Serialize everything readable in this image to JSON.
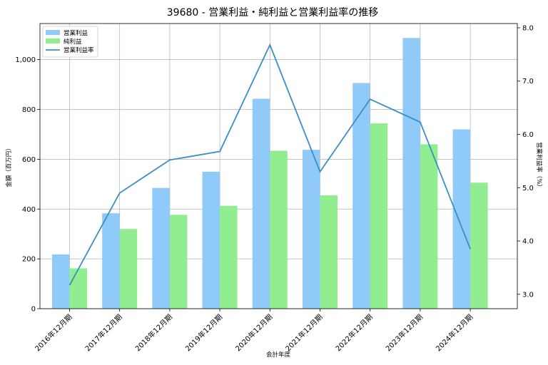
{
  "chart_data": {
    "type": "bar",
    "title": "39680 - 営業利益・純利益と営業利益率の推移",
    "xlabel": "会計年度",
    "ylabel": "金額（百万円）",
    "y2label": "営業利益率（%）",
    "categories": [
      "2016年12月期",
      "2017年12月期",
      "2018年12月期",
      "2019年12月期",
      "2020年12月期",
      "2021年12月期",
      "2022年12月期",
      "2023年12月期",
      "2024年12月期"
    ],
    "series": [
      {
        "name": "営業利益",
        "kind": "bar",
        "color": "#90caf9",
        "values": [
          218,
          383,
          485,
          550,
          843,
          638,
          906,
          1087,
          720
        ]
      },
      {
        "name": "純利益",
        "kind": "bar",
        "color": "#90ee90",
        "values": [
          162,
          320,
          377,
          413,
          634,
          455,
          744,
          660,
          506
        ]
      },
      {
        "name": "営業利益率",
        "kind": "line",
        "axis": "right",
        "color": "#3a8fc4",
        "values": [
          3.17,
          4.9,
          5.52,
          5.68,
          7.68,
          5.3,
          6.66,
          6.23,
          3.85
        ]
      }
    ],
    "ylim": [
      0,
      1145
    ],
    "yticks": [
      0,
      200,
      400,
      600,
      800,
      1000
    ],
    "yticklabels": [
      "0",
      "200",
      "400",
      "600",
      "800",
      "1,000"
    ],
    "y2lim": [
      2.73,
      8.08
    ],
    "y2ticks": [
      3.0,
      4.0,
      5.0,
      6.0,
      7.0,
      8.0
    ],
    "y2ticklabels": [
      "3.0",
      "4.0",
      "5.0",
      "6.0",
      "7.0",
      "8.0"
    ],
    "grid": true,
    "legend": "top-left"
  }
}
